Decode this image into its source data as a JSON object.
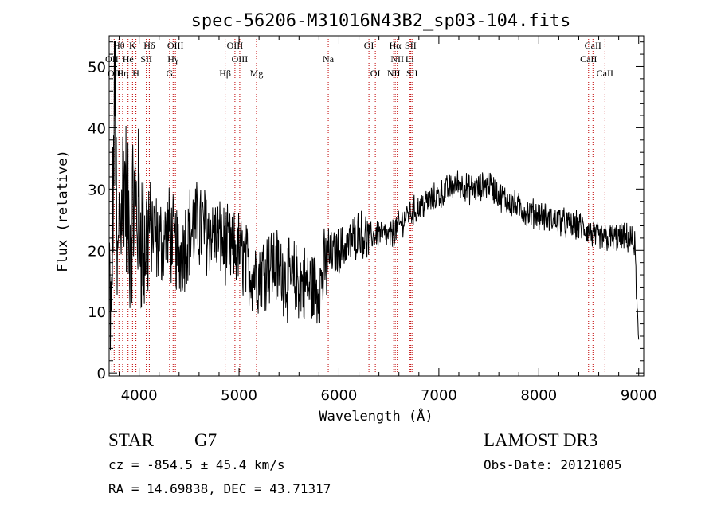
{
  "chart_data": {
    "type": "line",
    "title": "spec-56206-M31016N43B2_sp03-104.fits",
    "xlabel": "Wavelength (Å)",
    "ylabel": "Flux (relative)",
    "xlim": [
      3700,
      9050
    ],
    "ylim": [
      -0.5,
      55
    ],
    "xticks": [
      4000,
      5000,
      6000,
      7000,
      8000,
      9000
    ],
    "yticks": [
      0,
      10,
      20,
      30,
      40,
      50
    ],
    "series": [
      {
        "name": "spectrum",
        "anchors": [
          [
            3700,
            17
          ],
          [
            3720,
            5
          ],
          [
            3740,
            30
          ],
          [
            3760,
            48
          ],
          [
            3780,
            12
          ],
          [
            3800,
            25
          ],
          [
            3850,
            33
          ],
          [
            3900,
            22
          ],
          [
            3950,
            28
          ],
          [
            4000,
            26
          ],
          [
            4050,
            20
          ],
          [
            4100,
            24
          ],
          [
            4200,
            21
          ],
          [
            4300,
            23
          ],
          [
            4400,
            19
          ],
          [
            4500,
            23
          ],
          [
            4600,
            24
          ],
          [
            4700,
            23
          ],
          [
            4800,
            22
          ],
          [
            4900,
            20
          ],
          [
            5000,
            20
          ],
          [
            5100,
            17
          ],
          [
            5200,
            16
          ],
          [
            5300,
            18
          ],
          [
            5400,
            17
          ],
          [
            5500,
            15
          ],
          [
            5600,
            15
          ],
          [
            5700,
            14
          ],
          [
            5800,
            14
          ],
          [
            5900,
            19
          ],
          [
            6000,
            20
          ],
          [
            6100,
            21
          ],
          [
            6200,
            23
          ],
          [
            6300,
            22
          ],
          [
            6400,
            23
          ],
          [
            6500,
            22
          ],
          [
            6600,
            24
          ],
          [
            6700,
            26
          ],
          [
            6800,
            27
          ],
          [
            6900,
            28
          ],
          [
            7000,
            29
          ],
          [
            7100,
            30
          ],
          [
            7200,
            31
          ],
          [
            7300,
            30
          ],
          [
            7400,
            30
          ],
          [
            7500,
            31
          ],
          [
            7600,
            29
          ],
          [
            7700,
            28
          ],
          [
            7800,
            27
          ],
          [
            7900,
            26
          ],
          [
            8000,
            26
          ],
          [
            8100,
            25
          ],
          [
            8200,
            25
          ],
          [
            8300,
            24
          ],
          [
            8400,
            24
          ],
          [
            8500,
            23
          ],
          [
            8600,
            22
          ],
          [
            8700,
            22
          ],
          [
            8800,
            22
          ],
          [
            8900,
            22
          ],
          [
            8960,
            21
          ],
          [
            9000,
            4
          ]
        ]
      }
    ],
    "spectral_lines": [
      {
        "label": "Hθ",
        "wavelength": 3798,
        "row": 1
      },
      {
        "label": "K",
        "wavelength": 3934,
        "row": 1
      },
      {
        "label": "Hδ",
        "wavelength": 4102,
        "row": 1
      },
      {
        "label": "OIII",
        "wavelength": 4363,
        "row": 1
      },
      {
        "label": "OIII",
        "wavelength": 4959,
        "row": 1
      },
      {
        "label": "OI",
        "wavelength": 6300,
        "row": 1
      },
      {
        "label": "Hα",
        "wavelength": 6563,
        "row": 1
      },
      {
        "label": "SII",
        "wavelength": 6717,
        "row": 1
      },
      {
        "label": "CaII",
        "wavelength": 8542,
        "row": 1
      },
      {
        "label": "OII",
        "wavelength": 3727,
        "row": 2
      },
      {
        "label": "He",
        "wavelength": 3889,
        "row": 2
      },
      {
        "label": "SII",
        "wavelength": 4072,
        "row": 2
      },
      {
        "label": "Hγ",
        "wavelength": 4340,
        "row": 2
      },
      {
        "label": "OIII",
        "wavelength": 5007,
        "row": 2
      },
      {
        "label": "Na",
        "wavelength": 5893,
        "row": 2
      },
      {
        "label": "NII",
        "wavelength": 6584,
        "row": 2
      },
      {
        "label": "Li",
        "wavelength": 6708,
        "row": 2
      },
      {
        "label": "CaII",
        "wavelength": 8498,
        "row": 2
      },
      {
        "label": "OII",
        "wavelength": 3750,
        "row": 3
      },
      {
        "label": "Hη",
        "wavelength": 3835,
        "row": 3
      },
      {
        "label": "H",
        "wavelength": 3968,
        "row": 3
      },
      {
        "label": "G",
        "wavelength": 4305,
        "row": 3
      },
      {
        "label": "Hβ",
        "wavelength": 4861,
        "row": 3
      },
      {
        "label": "Mg",
        "wavelength": 5175,
        "row": 3
      },
      {
        "label": "OI",
        "wavelength": 6364,
        "row": 3
      },
      {
        "label": "NII",
        "wavelength": 6548,
        "row": 3
      },
      {
        "label": "SII",
        "wavelength": 6731,
        "row": 3
      },
      {
        "label": "CaII",
        "wavelength": 8662,
        "row": 3
      }
    ],
    "colors": {
      "spectrum": "#000000",
      "lines": "#c00000",
      "axes": "#000000"
    }
  },
  "info": {
    "object_class": "STAR",
    "subclass": "G7",
    "survey": "LAMOST DR3",
    "cz": "cz = -854.5 ± 45.4 km/s",
    "obs_date": "Obs-Date: 20121005",
    "coords": "RA =  14.69838, DEC =  43.71317"
  }
}
